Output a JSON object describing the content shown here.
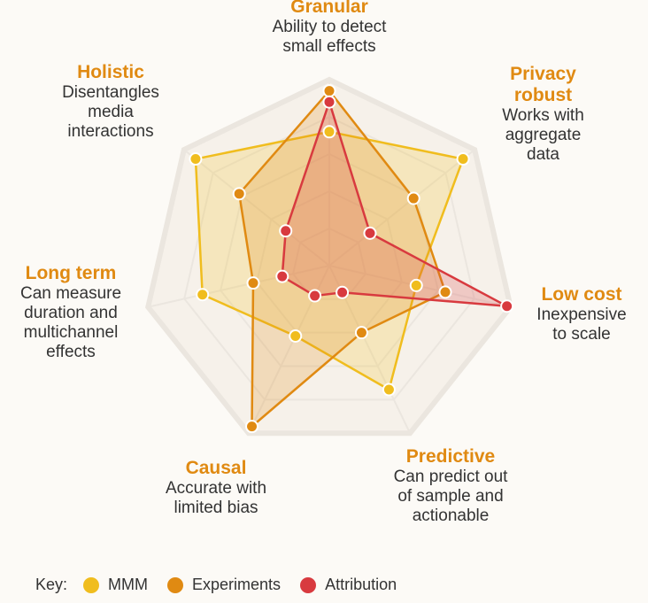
{
  "chart_data": {
    "type": "radar",
    "axes": [
      {
        "title": "Granular",
        "desc": "Ability to detect\nsmall effects"
      },
      {
        "title": "Privacy\nrobust",
        "desc": "Works with\naggregate\ndata"
      },
      {
        "title": "Low cost",
        "desc": "Inexpensive\nto scale"
      },
      {
        "title": "Predictive",
        "desc": "Can predict out\nof sample and\nactionable"
      },
      {
        "title": "Causal",
        "desc": "Accurate with\nlimited bias"
      },
      {
        "title": "Long term",
        "desc": "Can measure\nduration and\nmultichannel\neffects"
      },
      {
        "title": "Holistic",
        "desc": "Disentangles\nmedia\ninteractions"
      }
    ],
    "max": 5,
    "levels": 5,
    "series": [
      {
        "name": "MMM",
        "color": "#f0bd1e",
        "values": [
          3.6,
          4.6,
          2.4,
          3.7,
          2.1,
          3.5,
          4.6
        ]
      },
      {
        "name": "Experiments",
        "color": "#e08a12",
        "values": [
          4.7,
          2.9,
          3.2,
          2.0,
          4.8,
          2.1,
          3.1
        ]
      },
      {
        "name": "Attribution",
        "color": "#d83a3f",
        "values": [
          4.4,
          1.4,
          4.9,
          0.8,
          0.9,
          1.3,
          1.5
        ]
      }
    ]
  },
  "legend": {
    "key_label": "Key:",
    "items": [
      {
        "label": "MMM",
        "color": "#f0bd1e"
      },
      {
        "label": "Experiments",
        "color": "#e08a12"
      },
      {
        "label": "Attribution",
        "color": "#d83a3f"
      }
    ]
  }
}
